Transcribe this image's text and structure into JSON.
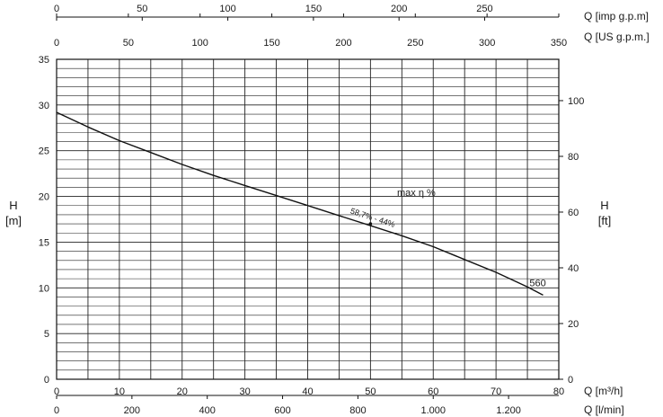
{
  "chart_data": {
    "type": "line",
    "axes": {
      "bottom1": {
        "unit_label": "Q [m³/h]",
        "range": [
          0,
          80
        ],
        "ticks": [
          "0",
          "10",
          "20",
          "30",
          "40",
          "50",
          "60",
          "70",
          "80"
        ]
      },
      "bottom2": {
        "unit_label": "Q [l/min]",
        "range": [
          0,
          1333.33
        ],
        "ticks": [
          {
            "value": 0,
            "label": "0"
          },
          {
            "value": 200,
            "label": "200"
          },
          {
            "value": 400,
            "label": "400"
          },
          {
            "value": 600,
            "label": "600"
          },
          {
            "value": 800,
            "label": "800"
          },
          {
            "value": 1000,
            "label": "1.000"
          },
          {
            "value": 1200,
            "label": "1.200"
          }
        ]
      },
      "top_imp": {
        "unit_label": "Q [imp g.p.m]",
        "range": [
          0,
          293.3
        ],
        "ticks": [
          "0",
          "50",
          "100",
          "150",
          "200",
          "250"
        ]
      },
      "top_us": {
        "unit_label": "Q [US g.p.m.]",
        "range": [
          0,
          350
        ],
        "ticks": [
          "0",
          "50",
          "100",
          "150",
          "200",
          "250",
          "300",
          "350"
        ]
      },
      "left": {
        "title_line1": "H",
        "title_line2": "[m]",
        "range": [
          0,
          35
        ],
        "ticks": [
          "0",
          "5",
          "10",
          "15",
          "20",
          "25",
          "30",
          "35"
        ]
      },
      "right": {
        "title_line1": "H",
        "title_line2": "[ft]",
        "range": [
          0,
          114.83
        ],
        "ticks": [
          "0",
          "20",
          "40",
          "60",
          "80",
          "100"
        ]
      }
    },
    "grid": true,
    "series": [
      {
        "name": "560",
        "color": "#111111",
        "x": [
          0,
          5,
          10,
          15,
          20,
          25,
          30,
          35,
          40,
          45,
          50,
          55,
          60,
          65,
          70,
          75,
          77.5
        ],
        "y": [
          29.2,
          27.6,
          26.1,
          24.8,
          23.5,
          22.3,
          21.2,
          20.1,
          19.0,
          17.9,
          16.8,
          15.7,
          14.5,
          13.1,
          11.7,
          10.1,
          9.2
        ]
      }
    ],
    "annotations": {
      "max_eta_label": "max η %",
      "efficiency_label": "58,7% - 44%",
      "efficiency_point": {
        "x": 50,
        "y": 17.0
      }
    }
  }
}
